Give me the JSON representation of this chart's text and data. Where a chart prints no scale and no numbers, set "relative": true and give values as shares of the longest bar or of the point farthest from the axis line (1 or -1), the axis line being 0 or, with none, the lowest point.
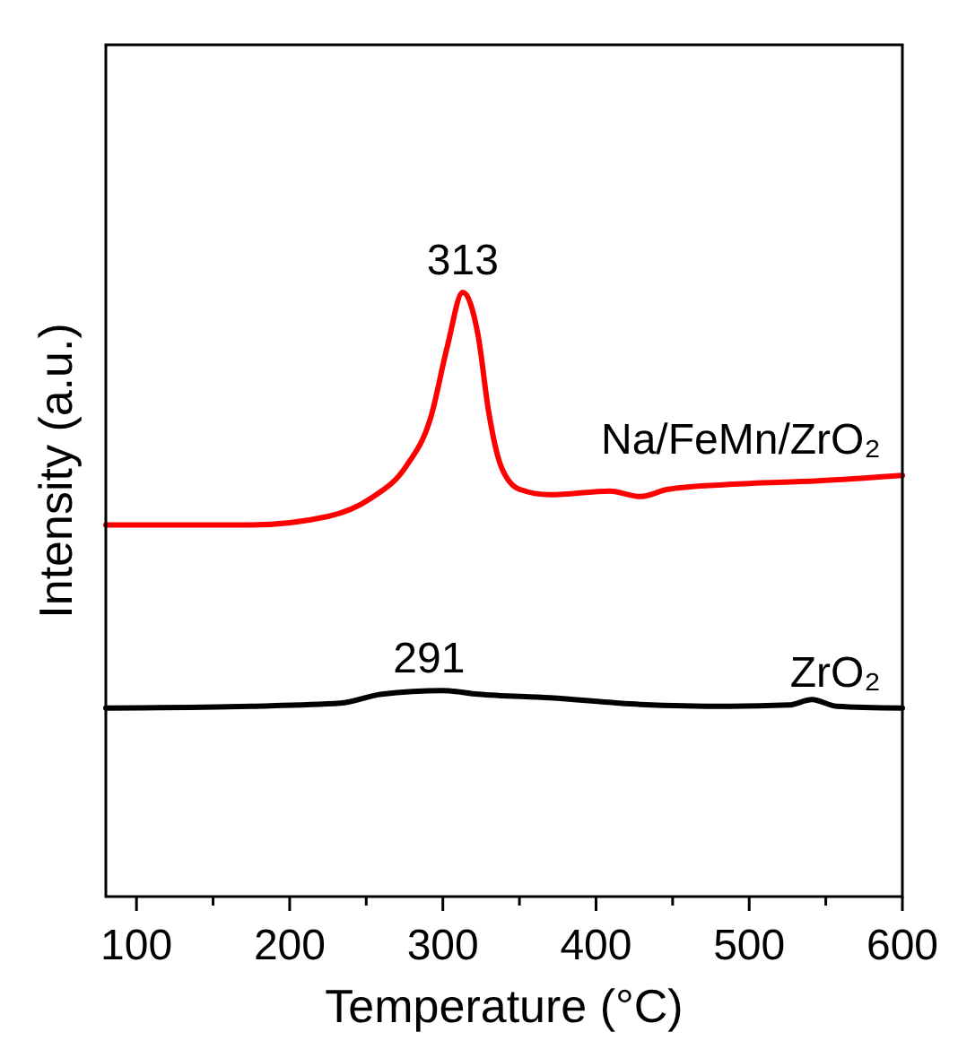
{
  "chart_data": {
    "type": "line",
    "relative": true,
    "xlabel": "Temperature (°C)",
    "ylabel": "Intensity (a.u.)",
    "xlim": [
      80,
      600
    ],
    "xticks": [
      100,
      {
        "value": 150,
        "label": null
      },
      200,
      {
        "value": 250,
        "label": null
      },
      300,
      {
        "value": 350,
        "label": null
      },
      400,
      {
        "value": 450,
        "label": null
      },
      500,
      {
        "value": 550,
        "label": null
      },
      600
    ],
    "grid": false,
    "line_style": "solid",
    "annotations": [
      {
        "text": "313",
        "x": 313,
        "y": 1
      },
      {
        "text": "291",
        "x": 291,
        "y": 0.341
      }
    ],
    "series": [
      {
        "name": "Na/FeMn/ZrO₂",
        "color": "#ff0000",
        "x": [
          80,
          175,
          225,
          253,
          276,
          292,
          303,
          313,
          323,
          330,
          338,
          350,
          370,
          409,
          429,
          447,
          487,
          545,
          600
        ],
        "values": [
          0.615,
          0.615,
          0.629,
          0.659,
          0.712,
          0.792,
          0.911,
          1,
          0.929,
          0.801,
          0.712,
          0.674,
          0.665,
          0.671,
          0.662,
          0.674,
          0.682,
          0.688,
          0.697
        ]
      },
      {
        "name": "ZrO₂",
        "color": "#000000",
        "x": [
          80,
          175,
          233,
          260,
          300,
          323,
          370,
          429,
          487,
          526,
          541,
          557,
          600
        ],
        "values": [
          0.312,
          0.315,
          0.32,
          0.335,
          0.341,
          0.335,
          0.329,
          0.318,
          0.315,
          0.317,
          0.326,
          0.315,
          0.312
        ]
      }
    ]
  }
}
